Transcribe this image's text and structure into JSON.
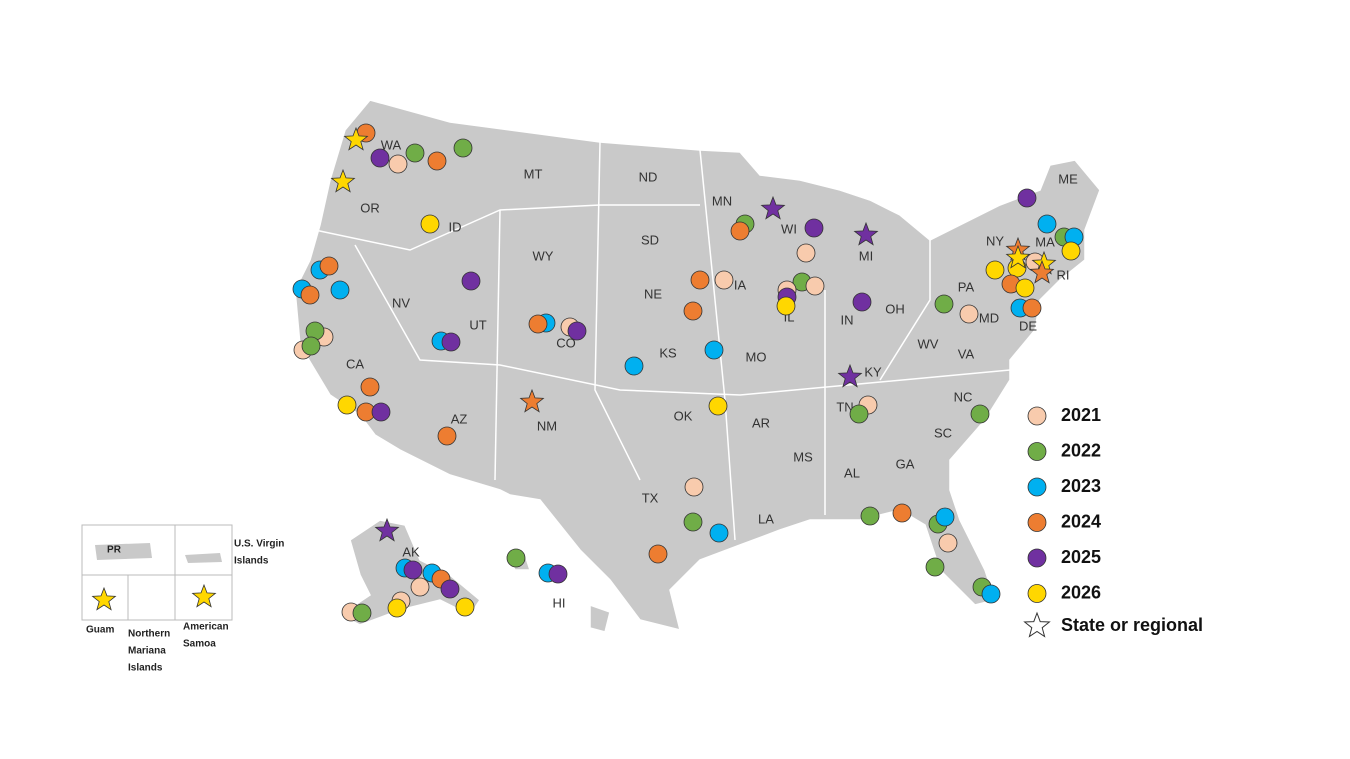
{
  "states": {
    "WA": "WA",
    "OR": "OR",
    "ID": "ID",
    "MT": "MT",
    "ND": "ND",
    "MN": "MN",
    "WI": "WI",
    "MI": "MI",
    "NY": "NY",
    "MA": "MA",
    "RI": "RI",
    "ME": "ME",
    "CA": "CA",
    "NV": "NV",
    "UT": "UT",
    "WY": "WY",
    "SD": "SD",
    "NE": "NE",
    "IA": "IA",
    "IL": "IL",
    "IN": "IN",
    "OH": "OH",
    "PA": "PA",
    "MD": "MD",
    "DE": "DE",
    "WV": "WV",
    "VA": "VA",
    "KY": "KY",
    "TN": "TN",
    "NC": "NC",
    "SC": "SC",
    "GA": "GA",
    "AL": "AL",
    "MS": "MS",
    "LA": "LA",
    "AR": "AR",
    "MO": "MO",
    "KS": "KS",
    "OK": "OK",
    "TX": "TX",
    "NM": "NM",
    "AZ": "AZ",
    "CO": "CO",
    "AK": "AK",
    "HI": "HI"
  },
  "territories": {
    "pr": [
      "PR"
    ],
    "usvi": [
      "U.S. Virgin",
      "Islands"
    ],
    "guam": [
      "Guam"
    ],
    "nmi": [
      "Northern",
      "Mariana",
      "Islands"
    ],
    "samoa": [
      "American",
      "Samoa"
    ]
  },
  "legend": [
    {
      "label": "2021",
      "color": "#f8cbad"
    },
    {
      "label": "2022",
      "color": "#70ad47"
    },
    {
      "label": "2023",
      "color": "#00b0f0"
    },
    {
      "label": "2024",
      "color": "#ed7d31"
    },
    {
      "label": "2025",
      "color": "#7030a0"
    },
    {
      "label": "2026",
      "color": "#ffd700"
    }
  ],
  "legend_star": "State or regional"
}
